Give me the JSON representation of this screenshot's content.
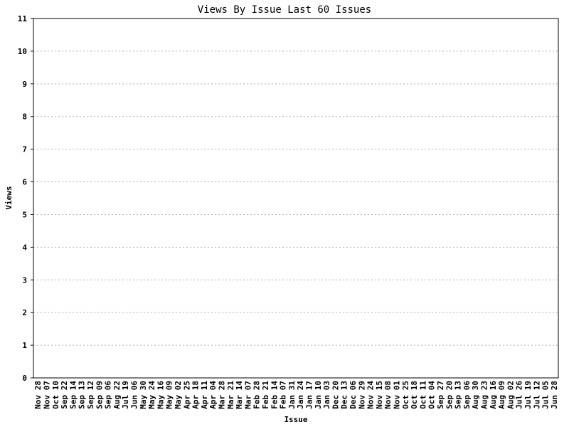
{
  "chart_data": {
    "type": "bar",
    "title": "Views By Issue Last 60 Issues",
    "xlabel": "Issue",
    "ylabel": "Views",
    "ylim": [
      0,
      11
    ],
    "yticks": [
      0,
      1,
      2,
      3,
      4,
      5,
      6,
      7,
      8,
      9,
      10,
      11
    ],
    "grid": true,
    "categories": [
      "Nov 28",
      "Nov 07",
      "Oct 10",
      "Sep 22",
      "Sep 14",
      "Sep 13",
      "Sep 12",
      "Sep 09",
      "Sep 06",
      "Aug 22",
      "Jul 19",
      "Jun 06",
      "May 30",
      "May 24",
      "May 16",
      "May 09",
      "May 02",
      "Apr 25",
      "Apr 18",
      "Apr 11",
      "Apr 04",
      "Mar 28",
      "Mar 21",
      "Mar 14",
      "Mar 07",
      "Feb 28",
      "Feb 21",
      "Feb 14",
      "Feb 07",
      "Jan 31",
      "Jan 24",
      "Jan 17",
      "Jan 10",
      "Jan 03",
      "Dec 20",
      "Dec 13",
      "Dec 06",
      "Nov 29",
      "Nov 24",
      "Nov 15",
      "Nov 08",
      "Nov 01",
      "Oct 25",
      "Oct 18",
      "Oct 11",
      "Oct 04",
      "Sep 27",
      "Sep 20",
      "Sep 13",
      "Sep 06",
      "Aug 30",
      "Aug 23",
      "Aug 16",
      "Aug 09",
      "Aug 02",
      "Jul 26",
      "Jul 19",
      "Jul 12",
      "Jul 05",
      "Jun 28"
    ],
    "values": [
      0,
      0,
      0,
      0,
      0,
      0,
      0,
      0,
      0,
      0,
      0,
      0,
      0,
      0,
      0,
      0,
      0,
      0,
      0,
      0,
      0,
      0,
      0,
      0,
      0,
      0,
      0,
      0,
      0,
      0,
      0,
      0,
      0,
      0,
      0,
      0,
      0,
      0,
      0,
      0,
      0,
      0,
      0,
      0,
      0,
      0,
      0,
      0,
      0,
      0,
      0,
      0,
      0,
      0,
      0,
      0,
      0,
      0,
      0,
      0
    ],
    "colors": {
      "frame": "#000000",
      "grid": "#b4b4b4",
      "bar": "#4a6fb5"
    }
  }
}
